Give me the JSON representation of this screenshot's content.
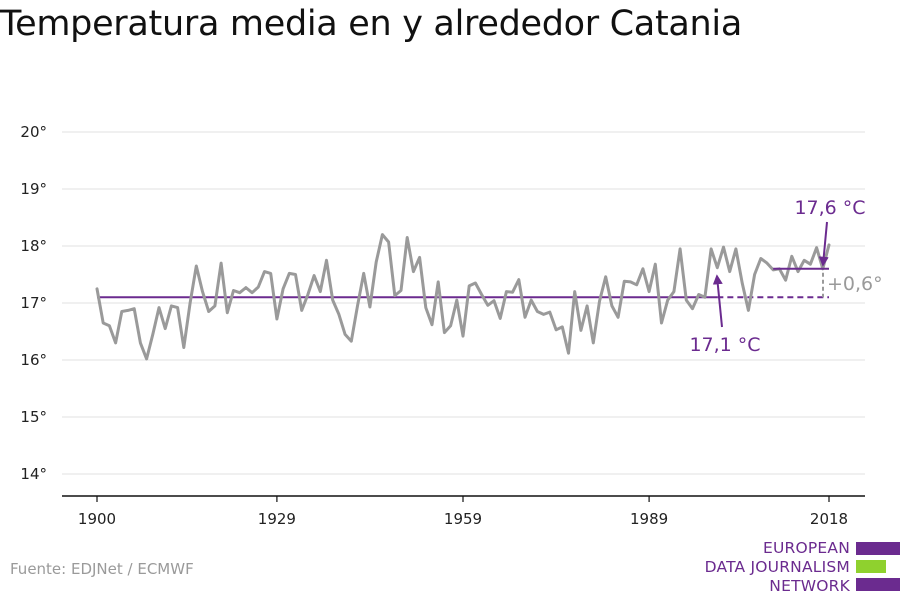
{
  "title": "Temperatura media en y alrededor Catania",
  "source": "Fuente: EDJNet / ECMWF",
  "logo": {
    "lines": [
      "EUROPEAN",
      "DATA JOURNALISM",
      "NETWORK"
    ],
    "colors": {
      "primary": "#6b2b8f",
      "accent": "#8fd12e"
    }
  },
  "colors": {
    "series": "#9a9a9a",
    "baseline": "#6b2b8f",
    "annotation": "#6b2b8f",
    "delta": "#9a9a9a",
    "axis": "#111111"
  },
  "chart_data": {
    "type": "line",
    "title": "Temperatura media en y alrededor Catania",
    "xlabel": "",
    "ylabel": "",
    "xlim": [
      1897,
      2021
    ],
    "ylim": [
      13.7,
      20.4
    ],
    "x_ticks": [
      1900,
      1929,
      1959,
      1989,
      2018
    ],
    "y_ticks": [
      14,
      15,
      16,
      17,
      18,
      19,
      20
    ],
    "y_tick_labels": [
      "14°",
      "15°",
      "16°",
      "17°",
      "18°",
      "19°",
      "20°"
    ],
    "grid": true,
    "series": [
      {
        "x": [
          1900,
          1901,
          1902,
          1903,
          1904,
          1905,
          1906,
          1907,
          1908,
          1909,
          1910,
          1911,
          1912,
          1913,
          1914,
          1915,
          1916,
          1917,
          1918,
          1919,
          1920,
          1921,
          1922,
          1923,
          1924,
          1925,
          1926,
          1927,
          1928,
          1929,
          1930,
          1931,
          1932,
          1933,
          1934,
          1935,
          1936,
          1937,
          1938,
          1939,
          1940,
          1941,
          1942,
          1943,
          1944,
          1945,
          1946,
          1947,
          1948,
          1949,
          1950,
          1951,
          1952,
          1953,
          1954,
          1955,
          1956,
          1957,
          1958,
          1959,
          1960,
          1961,
          1962,
          1963,
          1964,
          1965,
          1966,
          1967,
          1968,
          1969,
          1970,
          1971,
          1972,
          1973,
          1974,
          1975,
          1976,
          1977,
          1978,
          1979,
          1980,
          1981,
          1982,
          1983,
          1984,
          1985,
          1986,
          1987,
          1988,
          1989,
          1990,
          1991,
          1992,
          1993,
          1994,
          1995,
          1996,
          1997,
          1998,
          1999,
          2000,
          2001,
          2002,
          2003,
          2004,
          2005,
          2006,
          2007,
          2008,
          2009,
          2010,
          2011,
          2012,
          2013,
          2014,
          2015,
          2016,
          2017,
          2018
        ],
        "values": [
          17.25,
          16.65,
          16.6,
          16.3,
          16.85,
          16.87,
          16.9,
          16.3,
          16.02,
          16.45,
          16.92,
          16.55,
          16.95,
          16.92,
          16.22,
          17.0,
          17.65,
          17.2,
          16.85,
          16.95,
          17.7,
          16.83,
          17.22,
          17.18,
          17.27,
          17.18,
          17.28,
          17.55,
          17.52,
          16.72,
          17.25,
          17.52,
          17.5,
          16.87,
          17.15,
          17.48,
          17.2,
          17.75,
          17.05,
          16.8,
          16.45,
          16.33,
          16.95,
          17.52,
          16.93,
          17.72,
          18.2,
          18.07,
          17.13,
          17.22,
          18.15,
          17.55,
          17.8,
          16.92,
          16.62,
          17.37,
          16.48,
          16.6,
          17.05,
          16.42,
          17.3,
          17.35,
          17.15,
          16.96,
          17.04,
          16.73,
          17.2,
          17.19,
          17.41,
          16.75,
          17.05,
          16.85,
          16.8,
          16.84,
          16.53,
          16.58,
          16.12,
          17.2,
          16.52,
          16.95,
          16.3,
          17.03,
          17.46,
          16.95,
          16.75,
          17.38,
          17.37,
          17.32,
          17.6,
          17.2,
          17.68,
          16.65,
          17.05,
          17.2,
          17.95,
          17.05,
          16.9,
          17.15,
          17.1,
          17.95,
          17.62,
          17.98,
          17.55,
          17.95,
          17.35,
          16.87,
          17.5,
          17.78,
          17.7,
          17.58,
          17.6,
          17.4,
          17.82,
          17.55,
          17.75,
          17.68,
          17.97,
          17.6,
          18.02
        ]
      }
    ],
    "baseline": {
      "value": 17.1,
      "label": "17,1 °C",
      "from": 1900,
      "to": 2000
    },
    "baseline_extension": {
      "value": 17.1,
      "from": 2000,
      "to": 2018
    },
    "recent_mean": {
      "value": 17.6,
      "label": "17,6 °C",
      "from": 2009,
      "to": 2018
    },
    "difference": {
      "label": "+0,6°",
      "year": 2018
    }
  }
}
